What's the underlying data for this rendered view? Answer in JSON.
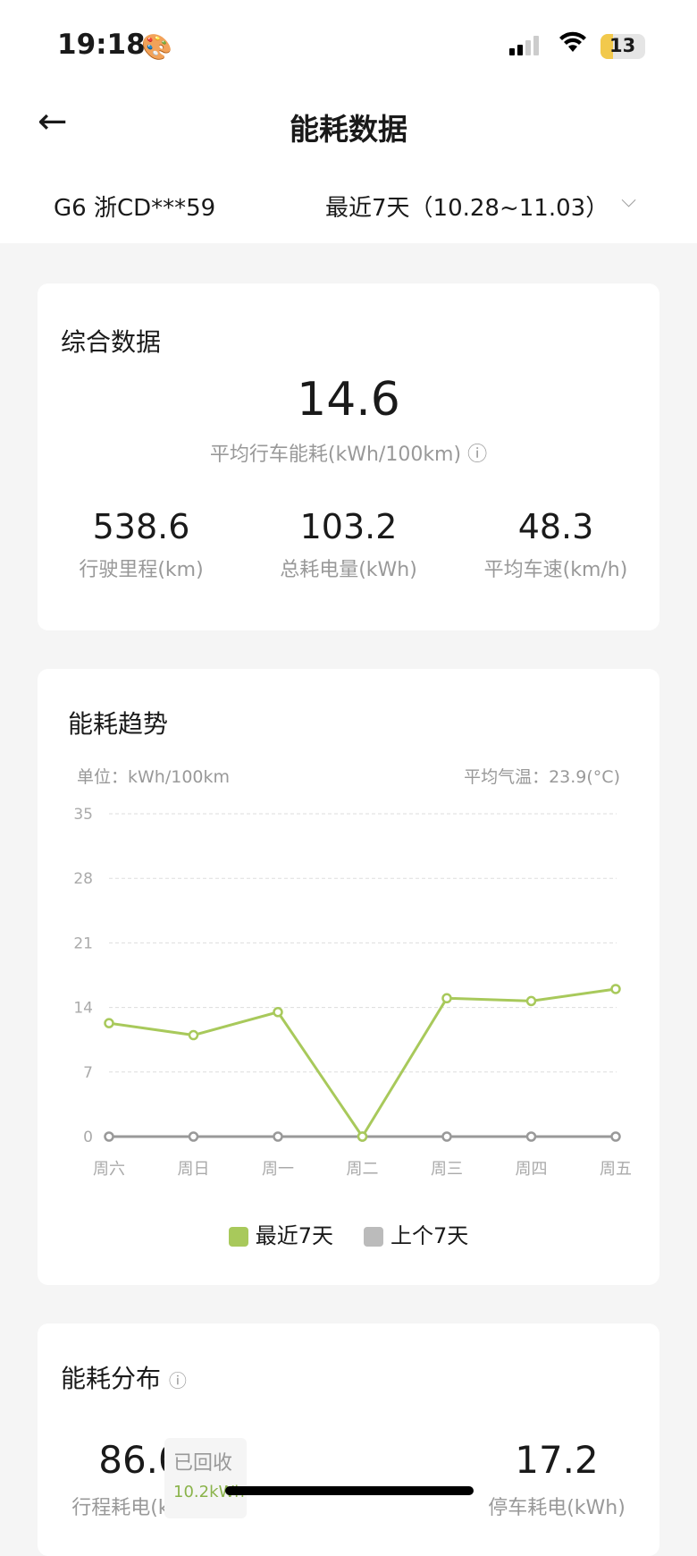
{
  "status": {
    "time": "19:18",
    "battery": "13"
  },
  "header": {
    "title": "能耗数据",
    "vehicle": "G6 浙CD***59",
    "period": "最近7天（10.28~11.03）"
  },
  "summary": {
    "title": "综合数据",
    "avg_value": "14.6",
    "avg_label": "平均行车能耗(kWh/100km)",
    "stats": [
      {
        "value": "538.6",
        "label": "行驶里程(km)"
      },
      {
        "value": "103.2",
        "label": "总耗电量(kWh)"
      },
      {
        "value": "48.3",
        "label": "平均车速(km/h)"
      }
    ]
  },
  "trend": {
    "title": "能耗趋势",
    "unit": "单位：kWh/100km",
    "temp": "平均气温：23.9(°C)"
  },
  "chart_data": {
    "type": "line",
    "categories": [
      "周六",
      "周日",
      "周一",
      "周二",
      "周三",
      "周四",
      "周五"
    ],
    "ylim": [
      0,
      35
    ],
    "yticks": [
      0,
      7,
      14,
      21,
      28,
      35
    ],
    "grid": true,
    "legend": "bottom",
    "series": [
      {
        "name": "最近7天",
        "color": "#a8c95b",
        "values": [
          12.3,
          11.0,
          13.5,
          0,
          15.0,
          14.7,
          16.0
        ]
      },
      {
        "name": "上个7天",
        "color": "#999999",
        "values": [
          0,
          0,
          0,
          0,
          0,
          0,
          0
        ]
      }
    ]
  },
  "distribution": {
    "title": "能耗分布",
    "drive_value": "86.0",
    "drive_label": "行程耗电(kWh)",
    "recovered_label": "已回收",
    "recovered_value": "10.2kWh",
    "park_value": "17.2",
    "park_label": "停车耗电(kWh)"
  }
}
